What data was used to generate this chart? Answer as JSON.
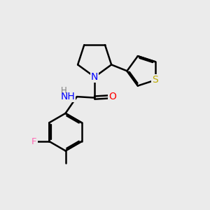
{
  "background_color": "#ebebeb",
  "bond_color": "#000000",
  "bond_width": 1.8,
  "atom_colors": {
    "N": "#0000ff",
    "O": "#ff0000",
    "S": "#bbaa00",
    "F": "#ff69b4",
    "H": "#808080",
    "C": "#000000"
  },
  "font_size": 9,
  "fig_size": [
    3.0,
    3.0
  ],
  "dpi": 100
}
